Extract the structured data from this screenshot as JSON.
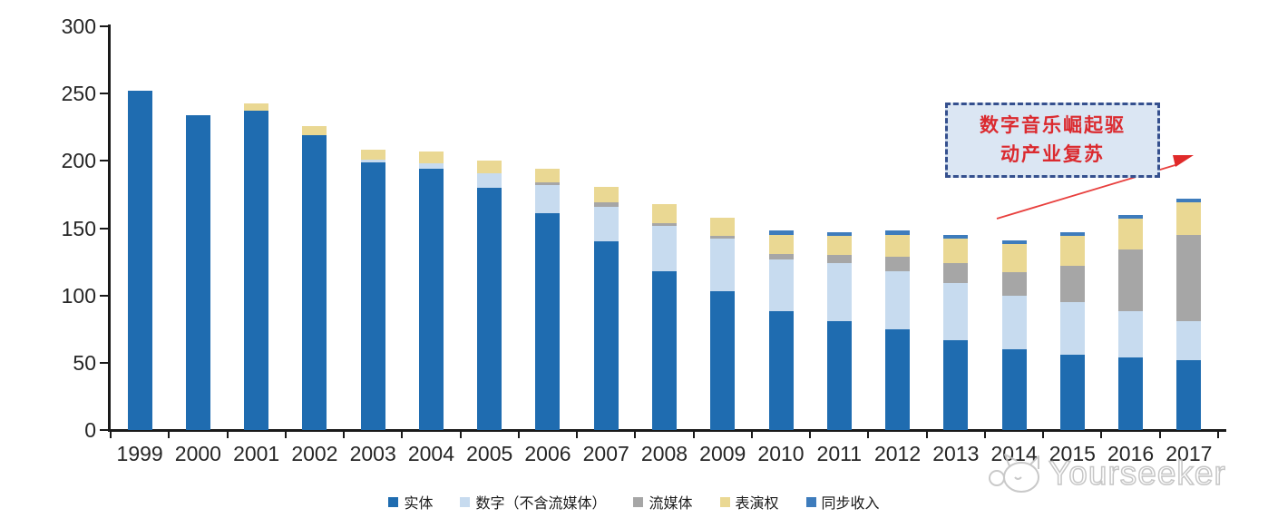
{
  "chart_data": {
    "type": "bar",
    "stacked": true,
    "title": "",
    "xlabel": "",
    "ylabel": "",
    "ylim": [
      0,
      300
    ],
    "yticks": [
      0,
      50,
      100,
      150,
      200,
      250,
      300
    ],
    "grid": false,
    "legend_position": "bottom",
    "categories": [
      "1999",
      "2000",
      "2001",
      "2002",
      "2003",
      "2004",
      "2005",
      "2006",
      "2007",
      "2008",
      "2009",
      "2010",
      "2011",
      "2012",
      "2013",
      "2014",
      "2015",
      "2016",
      "2017"
    ],
    "series": [
      {
        "name": "实体",
        "key": "physical",
        "color": "#1F6CB0",
        "values": [
          252,
          234,
          237,
          219,
          199,
          194,
          180,
          161,
          140,
          118,
          103,
          88,
          81,
          75,
          67,
          60,
          56,
          54,
          52
        ]
      },
      {
        "name": "数字（不含流媒体）",
        "key": "digital-excl-streaming",
        "color": "#C7DBEF",
        "values": [
          0,
          0,
          0,
          0,
          2,
          4,
          11,
          21,
          26,
          34,
          39,
          39,
          43,
          43,
          42,
          40,
          39,
          34,
          29
        ]
      },
      {
        "name": "流媒体",
        "key": "streaming",
        "color": "#A6A6A6",
        "values": [
          0,
          0,
          0,
          0,
          0,
          0,
          0,
          2,
          3,
          2,
          2,
          4,
          6,
          11,
          15,
          17,
          27,
          46,
          64
        ]
      },
      {
        "name": "表演权",
        "key": "performance-rights",
        "color": "#EAD893",
        "values": [
          0,
          0,
          6,
          7,
          7,
          9,
          9,
          10,
          12,
          14,
          14,
          14,
          14,
          16,
          18,
          21,
          22,
          23,
          24
        ]
      },
      {
        "name": "同步收入",
        "key": "sync-revenue",
        "color": "#3E7CBC",
        "values": [
          0,
          0,
          0,
          0,
          0,
          0,
          0,
          0,
          0,
          0,
          0,
          3,
          3,
          3,
          3,
          3,
          3,
          3,
          3
        ]
      }
    ]
  },
  "annotation": {
    "line1": "数字音乐崛起驱",
    "line2": "动产业复苏"
  },
  "watermark": {
    "text": "Yourseeker",
    "logo": "cat-logo"
  },
  "colors": {
    "axis": "#1A1A1A",
    "annotation_border": "#35508E",
    "annotation_fill": "#DBE6F3",
    "annotation_text": "#DB2A2F",
    "arrow": "#E8403E"
  }
}
